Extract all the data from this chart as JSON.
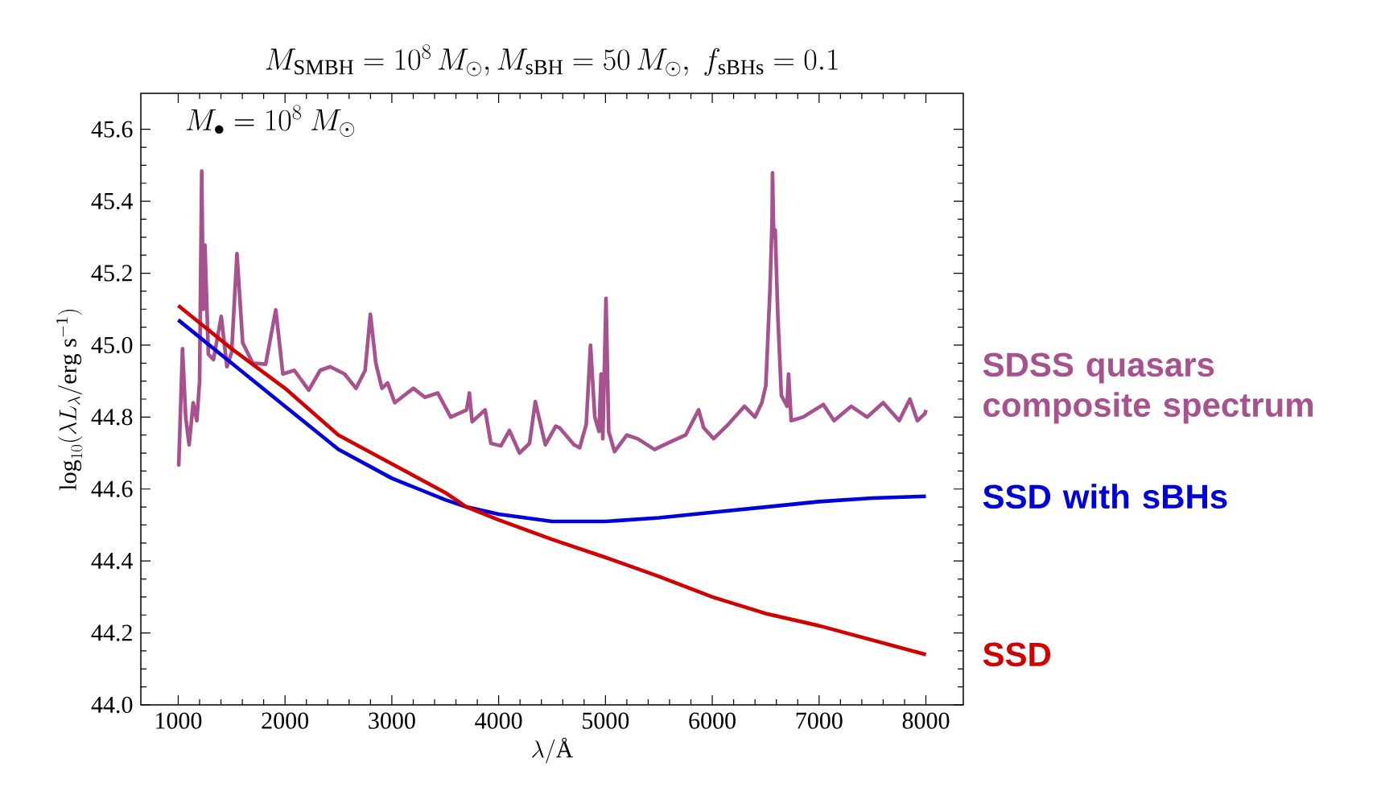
{
  "chart_data": {
    "type": "line",
    "title": "M_{\\mathrm{SMBH}} = 10^{8}\\,M_{\\odot}, M_{\\mathrm{sBH}} = 50\\,M_{\\odot},\\ f_{\\mathrm{sBHs}} = 0.1",
    "xlabel": "\\lambda/\\text{Å}",
    "ylabel": "\\log_{10}(\\lambda L_{\\lambda}/\\mathrm{erg\\ s^{-1}})",
    "annotations": [
      "M_{\\bullet} = 10^{8}\\ M_{\\odot}"
    ],
    "xlim": [
      650,
      8350
    ],
    "ylim": [
      44.0,
      45.7
    ],
    "xticks": [
      1000,
      2000,
      3000,
      4000,
      5000,
      6000,
      7000,
      8000
    ],
    "yticks": [
      {
        "value": 44.0,
        "label": "44.0"
      },
      {
        "value": 44.2,
        "label": "44.2"
      },
      {
        "value": 44.4,
        "label": "44.4"
      },
      {
        "value": 44.6,
        "label": "44.6"
      },
      {
        "value": 44.8,
        "label": "44.8"
      },
      {
        "value": 45.0,
        "label": "45.0"
      },
      {
        "value": 45.2,
        "label": "45.2"
      },
      {
        "value": 45.4,
        "label": "45.4"
      },
      {
        "value": 45.6,
        "label": "45.6"
      }
    ],
    "series": [
      {
        "name": "SDSS quasars composite spectrum",
        "color": "#a8518f",
        "x": [
          1000,
          1005,
          1040,
          1070,
          1102,
          1140,
          1174,
          1200,
          1220,
          1235,
          1250,
          1282,
          1330,
          1403,
          1456,
          1500,
          1550,
          1604,
          1698,
          1819,
          1913,
          1980,
          2087,
          2222,
          2329,
          2423,
          2557,
          2665,
          2750,
          2799,
          2850,
          2907,
          2960,
          3027,
          3202,
          3309,
          3430,
          3551,
          3700,
          3726,
          3752,
          3873,
          3927,
          4021,
          4101,
          4195,
          4289,
          4343,
          4437,
          4534,
          4571,
          4706,
          4759,
          4820,
          4860,
          4900,
          4940,
          4959,
          4975,
          5005,
          5030,
          5085,
          5200,
          5300,
          5459,
          5600,
          5750,
          5872,
          5920,
          6013,
          6150,
          6301,
          6400,
          6464,
          6501,
          6541,
          6560,
          6564,
          6575,
          6589,
          6614,
          6647,
          6700,
          6714,
          6739,
          6850,
          7040,
          7140,
          7300,
          7450,
          7600,
          7750,
          7850,
          7920,
          7992,
          8000
        ],
        "values": [
          44.67,
          44.667,
          44.99,
          44.8,
          44.723,
          44.84,
          44.79,
          44.9,
          45.484,
          45.1,
          45.278,
          44.975,
          44.96,
          45.08,
          44.94,
          44.98,
          45.254,
          45.006,
          44.95,
          44.947,
          45.098,
          44.92,
          44.93,
          44.875,
          44.93,
          44.94,
          44.92,
          44.88,
          44.93,
          45.086,
          44.95,
          44.88,
          44.895,
          44.84,
          44.88,
          44.855,
          44.867,
          44.8,
          44.82,
          44.867,
          44.787,
          44.82,
          44.727,
          44.72,
          44.763,
          44.7,
          44.727,
          44.843,
          44.723,
          44.775,
          44.77,
          44.723,
          44.715,
          44.78,
          45.0,
          44.8,
          44.76,
          44.92,
          44.74,
          45.13,
          44.76,
          44.704,
          44.75,
          44.74,
          44.71,
          44.73,
          44.75,
          44.82,
          44.77,
          44.74,
          44.78,
          44.83,
          44.8,
          44.84,
          44.887,
          45.16,
          45.35,
          45.479,
          45.3,
          45.32,
          45.08,
          44.86,
          44.83,
          44.92,
          44.79,
          44.8,
          44.835,
          44.79,
          44.83,
          44.8,
          44.84,
          44.79,
          44.85,
          44.79,
          44.81,
          44.82
        ]
      },
      {
        "name": "SSD with sBHs",
        "color": "#0000dd",
        "x": [
          1000,
          1250,
          1500,
          2000,
          2500,
          3000,
          3500,
          3700,
          4000,
          4500,
          5000,
          5500,
          6000,
          6500,
          7000,
          7500,
          8000
        ],
        "values": [
          45.07,
          45.01,
          44.95,
          44.83,
          44.71,
          44.63,
          44.57,
          44.55,
          44.53,
          44.51,
          44.51,
          44.52,
          44.535,
          44.55,
          44.565,
          44.575,
          44.58
        ]
      },
      {
        "name": "SSD",
        "color": "#d40000",
        "x": [
          1000,
          1250,
          1500,
          2000,
          2500,
          3000,
          3500,
          3700,
          4000,
          4500,
          5000,
          5500,
          6000,
          6500,
          7000,
          7500,
          8000
        ],
        "values": [
          45.11,
          45.05,
          44.99,
          44.88,
          44.75,
          44.67,
          44.59,
          44.55,
          44.514,
          44.46,
          44.41,
          44.357,
          44.3,
          44.254,
          44.22,
          44.18,
          44.14
        ]
      }
    ]
  }
}
